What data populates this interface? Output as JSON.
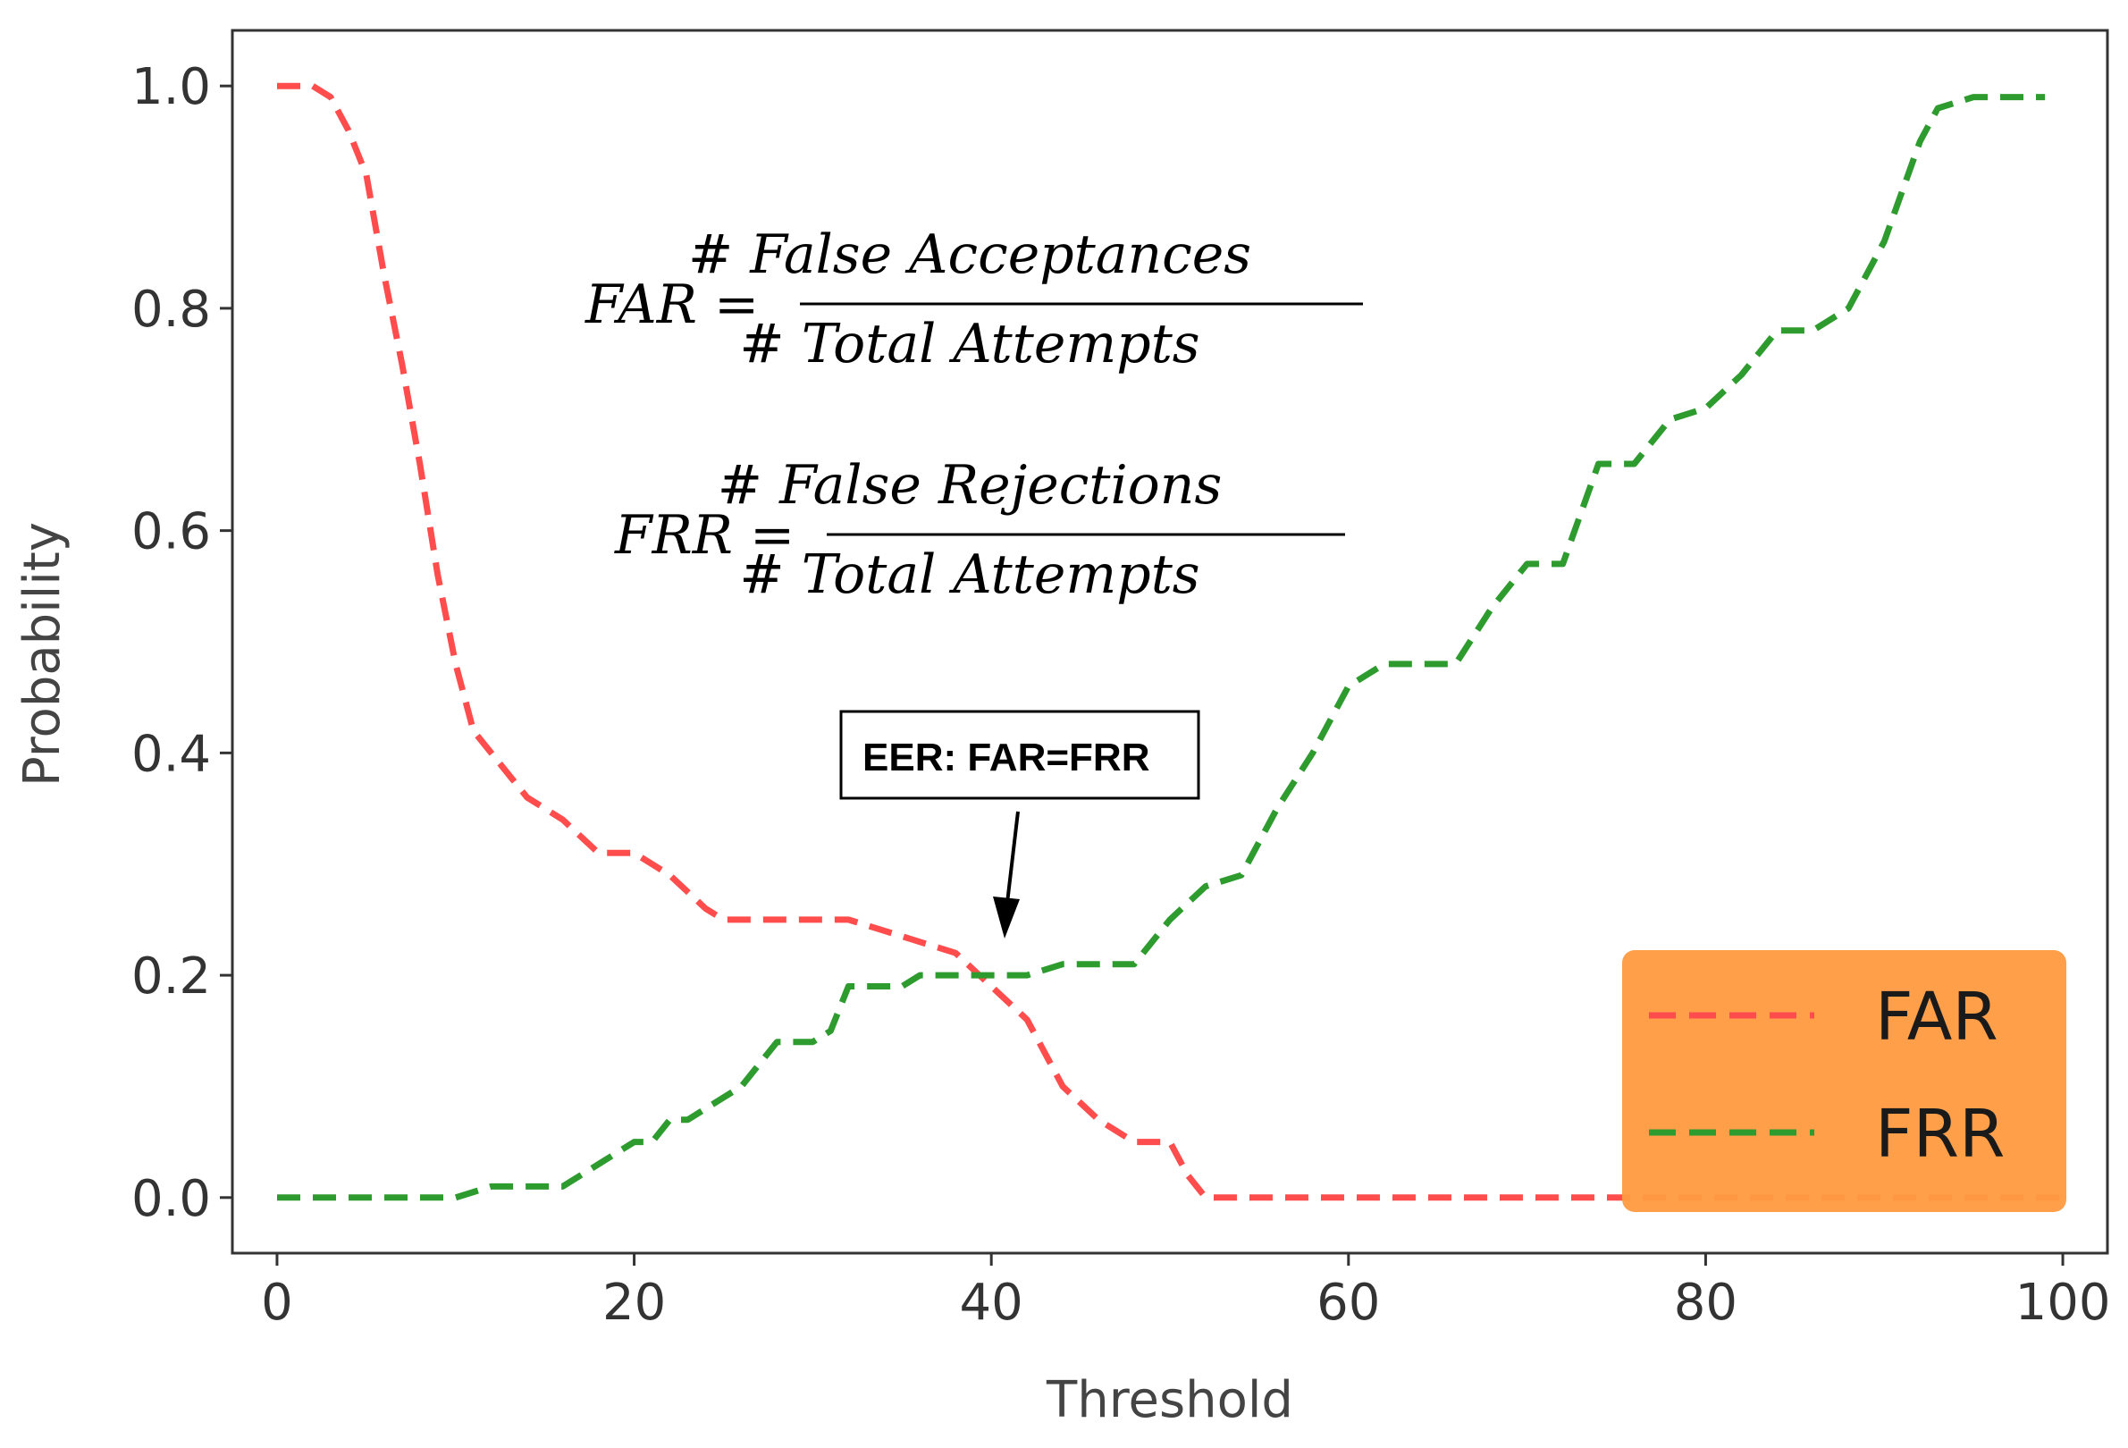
{
  "chart_data": {
    "type": "line",
    "xlabel": "Threshold",
    "ylabel": "Probability",
    "xlim": [
      -2.5,
      102.5
    ],
    "ylim": [
      -0.05,
      1.05
    ],
    "x_ticks": [
      0,
      20,
      40,
      60,
      80,
      100
    ],
    "y_ticks": [
      0.0,
      0.2,
      0.4,
      0.6,
      0.8,
      1.0
    ],
    "x_tick_labels": [
      "0",
      "20",
      "40",
      "60",
      "80",
      "100"
    ],
    "y_tick_labels": [
      "0.0",
      "0.2",
      "0.4",
      "0.6",
      "0.8",
      "1.0"
    ],
    "legend_position": "bottom-right",
    "legend_background": "#FF9A40",
    "series": [
      {
        "name": "FAR",
        "color": "#FF4D4D",
        "style": "dashed",
        "x": [
          0,
          2,
          3,
          4,
          5,
          6,
          7,
          8,
          9,
          10,
          11,
          12,
          14,
          16,
          18,
          20,
          22,
          24,
          25,
          26,
          28,
          30,
          32,
          34,
          36,
          38,
          40,
          42,
          44,
          46,
          48,
          50,
          51,
          52,
          55,
          60,
          70,
          80,
          90,
          100
        ],
        "y": [
          1.0,
          1.0,
          0.99,
          0.96,
          0.92,
          0.83,
          0.75,
          0.66,
          0.56,
          0.48,
          0.42,
          0.4,
          0.36,
          0.34,
          0.31,
          0.31,
          0.29,
          0.26,
          0.25,
          0.25,
          0.25,
          0.25,
          0.25,
          0.24,
          0.23,
          0.22,
          0.19,
          0.16,
          0.1,
          0.07,
          0.05,
          0.05,
          0.02,
          0.0,
          0.0,
          0.0,
          0.0,
          0.0,
          0.0,
          0.0
        ]
      },
      {
        "name": "FRR",
        "color": "#2E9B2E",
        "style": "dashed",
        "x": [
          0,
          5,
          10,
          11,
          12,
          14,
          16,
          18,
          20,
          21,
          22,
          23,
          24,
          25,
          26,
          28,
          29,
          30,
          31,
          32,
          33,
          34,
          35,
          36,
          38,
          40,
          42,
          44,
          46,
          48,
          50,
          52,
          54,
          56,
          58,
          60,
          62,
          64,
          66,
          68,
          70,
          72,
          74,
          76,
          78,
          80,
          82,
          84,
          86,
          88,
          90,
          92,
          93,
          95,
          97,
          99
        ],
        "y": [
          0.0,
          0.0,
          0.0,
          0.005,
          0.01,
          0.01,
          0.01,
          0.03,
          0.05,
          0.05,
          0.07,
          0.07,
          0.08,
          0.09,
          0.1,
          0.14,
          0.14,
          0.14,
          0.15,
          0.19,
          0.19,
          0.19,
          0.19,
          0.2,
          0.2,
          0.2,
          0.2,
          0.21,
          0.21,
          0.21,
          0.25,
          0.28,
          0.29,
          0.35,
          0.4,
          0.46,
          0.48,
          0.48,
          0.48,
          0.53,
          0.57,
          0.57,
          0.66,
          0.66,
          0.7,
          0.71,
          0.74,
          0.78,
          0.78,
          0.8,
          0.86,
          0.95,
          0.98,
          0.99,
          0.99,
          0.99
        ]
      }
    ],
    "annotations": {
      "eer_label": "EER: FAR=FRR",
      "eer_point": {
        "x": 40,
        "y": 0.2
      }
    },
    "formulas": {
      "far_lhs": "FAR =",
      "far_numerator": "# False Acceptances",
      "far_denominator": "# Total Attempts",
      "frr_lhs": "FRR =",
      "frr_numerator": "# False Rejections",
      "frr_denominator": "# Total Attempts"
    }
  }
}
